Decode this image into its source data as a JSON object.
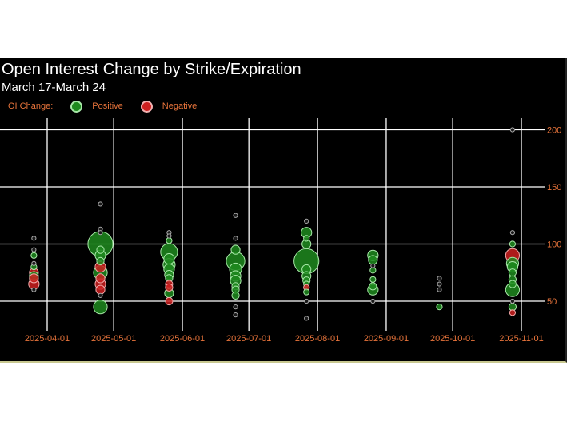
{
  "chart_data": {
    "type": "scatter",
    "title": "Open Interest Change by Strike/Expiration",
    "subtitle": "March 17-March 24",
    "legend": {
      "title": "OI Change:",
      "entries": [
        {
          "name": "Positive",
          "color": "#1e8a1e"
        },
        {
          "name": "Negative",
          "color": "#cc2020"
        }
      ],
      "placement": "top-left"
    },
    "xlabel": "",
    "ylabel": "",
    "x_ticks": [
      "2025-04-01",
      "2025-05-01",
      "2025-06-01",
      "2025-07-01",
      "2025-08-01",
      "2025-09-01",
      "2025-10-01",
      "2025-11-01"
    ],
    "y_ticks": [
      50,
      100,
      150,
      200
    ],
    "ylim": [
      25,
      205
    ],
    "y_axis_side": "right",
    "grid": true,
    "size_encodes": "magnitude of OI change (relative)",
    "colors": {
      "background": "#000000",
      "grid": "#ffffff",
      "tick_text": "#e8743b",
      "positive": "#1e8a1e",
      "negative": "#cc2020"
    },
    "expirations": [
      {
        "date": "2025-03-26",
        "points": [
          [
            105,
            1,
            "p"
          ],
          [
            95,
            1,
            "p"
          ],
          [
            90,
            2,
            "p"
          ],
          [
            83,
            1,
            "p"
          ],
          [
            80,
            2,
            "p"
          ],
          [
            75,
            4,
            "n"
          ],
          [
            72,
            4,
            "p"
          ],
          [
            70,
            4,
            "n"
          ],
          [
            65,
            5,
            "n"
          ],
          [
            60,
            1,
            "p"
          ]
        ]
      },
      {
        "date": "2025-04-25",
        "points": [
          [
            135,
            1,
            "p"
          ],
          [
            113,
            1,
            "p"
          ],
          [
            110,
            1,
            "p"
          ],
          [
            100,
            14,
            "p"
          ],
          [
            95,
            3,
            "p"
          ],
          [
            90,
            5,
            "p"
          ],
          [
            85,
            3,
            "p"
          ],
          [
            80,
            5,
            "n"
          ],
          [
            75,
            7,
            "p"
          ],
          [
            70,
            4,
            "n"
          ],
          [
            65,
            5,
            "n"
          ],
          [
            60,
            4,
            "n"
          ],
          [
            55,
            1,
            "p"
          ],
          [
            45,
            7,
            "p"
          ]
        ]
      },
      {
        "date": "2025-05-26",
        "points": [
          [
            110,
            1,
            "p"
          ],
          [
            107,
            1,
            "p"
          ],
          [
            103,
            2,
            "p"
          ],
          [
            93,
            9,
            "p"
          ],
          [
            87,
            5,
            "p"
          ],
          [
            82,
            6,
            "p"
          ],
          [
            78,
            5,
            "p"
          ],
          [
            73,
            4,
            "p"
          ],
          [
            70,
            3,
            "p"
          ],
          [
            65,
            3,
            "n"
          ],
          [
            62,
            3,
            "n"
          ],
          [
            57,
            4,
            "p"
          ],
          [
            50,
            3,
            "n"
          ]
        ]
      },
      {
        "date": "2025-06-25",
        "points": [
          [
            125,
            1,
            "p"
          ],
          [
            105,
            1,
            "p"
          ],
          [
            95,
            4,
            "p"
          ],
          [
            85,
            10,
            "p"
          ],
          [
            78,
            6,
            "p"
          ],
          [
            72,
            5,
            "p"
          ],
          [
            68,
            5,
            "p"
          ],
          [
            63,
            3,
            "p"
          ],
          [
            60,
            3,
            "p"
          ],
          [
            55,
            3,
            "p"
          ],
          [
            45,
            1,
            "p"
          ],
          [
            38,
            1,
            "p"
          ]
        ]
      },
      {
        "date": "2025-07-27",
        "points": [
          [
            120,
            1,
            "p"
          ],
          [
            110,
            5,
            "p"
          ],
          [
            105,
            2,
            "p"
          ],
          [
            100,
            4,
            "p"
          ],
          [
            85,
            14,
            "p"
          ],
          [
            78,
            4,
            "p"
          ],
          [
            72,
            4,
            "p"
          ],
          [
            68,
            3,
            "p"
          ],
          [
            65,
            2,
            "p"
          ],
          [
            62,
            2,
            "n"
          ],
          [
            58,
            2,
            "p"
          ],
          [
            50,
            1,
            "p"
          ],
          [
            35,
            1,
            "p"
          ]
        ]
      },
      {
        "date": "2025-08-26",
        "points": [
          [
            90,
            5,
            "p"
          ],
          [
            86,
            4,
            "p"
          ],
          [
            81,
            1,
            "p"
          ],
          [
            77,
            2,
            "p"
          ],
          [
            69,
            2,
            "p"
          ],
          [
            63,
            3,
            "p"
          ],
          [
            60,
            5,
            "p"
          ],
          [
            50,
            1,
            "p"
          ]
        ]
      },
      {
        "date": "2025-09-25",
        "points": [
          [
            70,
            1,
            "p"
          ],
          [
            65,
            1,
            "p"
          ],
          [
            60,
            1,
            "p"
          ],
          [
            45,
            2,
            "p"
          ]
        ]
      },
      {
        "date": "2025-10-28",
        "points": [
          [
            200,
            1,
            "p"
          ],
          [
            110,
            1,
            "p"
          ],
          [
            100,
            2,
            "p"
          ],
          [
            90,
            7,
            "n"
          ],
          [
            83,
            6,
            "p"
          ],
          [
            80,
            5,
            "p"
          ],
          [
            75,
            3,
            "p"
          ],
          [
            69,
            3,
            "p"
          ],
          [
            65,
            3,
            "p"
          ],
          [
            60,
            7,
            "p"
          ],
          [
            50,
            1,
            "p"
          ],
          [
            45,
            3,
            "p"
          ],
          [
            40,
            2,
            "n"
          ]
        ]
      }
    ]
  }
}
